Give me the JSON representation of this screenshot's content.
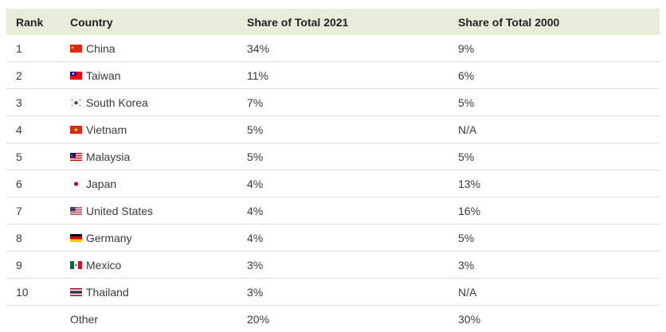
{
  "table": {
    "headers": {
      "rank": "Rank",
      "country": "Country",
      "share_2021": "Share of Total 2021",
      "share_2000": "Share of Total 2000"
    },
    "rows": [
      {
        "rank": "1",
        "country": "China",
        "flag": "china-flag-icon",
        "share_2021": "34%",
        "share_2000": "9%"
      },
      {
        "rank": "2",
        "country": "Taiwan",
        "flag": "taiwan-flag-icon",
        "share_2021": "11%",
        "share_2000": "6%"
      },
      {
        "rank": "3",
        "country": "South Korea",
        "flag": "south-korea-flag-icon",
        "share_2021": "7%",
        "share_2000": "5%"
      },
      {
        "rank": "4",
        "country": "Vietnam",
        "flag": "vietnam-flag-icon",
        "share_2021": "5%",
        "share_2000": "N/A"
      },
      {
        "rank": "5",
        "country": "Malaysia",
        "flag": "malaysia-flag-icon",
        "share_2021": "5%",
        "share_2000": "5%"
      },
      {
        "rank": "6",
        "country": "Japan",
        "flag": "japan-flag-icon",
        "share_2021": "4%",
        "share_2000": "13%"
      },
      {
        "rank": "7",
        "country": "United States",
        "flag": "united-states-flag-icon",
        "share_2021": "4%",
        "share_2000": "16%"
      },
      {
        "rank": "8",
        "country": "Germany",
        "flag": "germany-flag-icon",
        "share_2021": "4%",
        "share_2000": "5%"
      },
      {
        "rank": "9",
        "country": "Mexico",
        "flag": "mexico-flag-icon",
        "share_2021": "3%",
        "share_2000": "3%"
      },
      {
        "rank": "10",
        "country": "Thailand",
        "flag": "thailand-flag-icon",
        "share_2021": "3%",
        "share_2000": "N/A"
      },
      {
        "rank": "",
        "country": "Other",
        "flag": "",
        "share_2021": "20%",
        "share_2000": "30%"
      }
    ]
  },
  "colors": {
    "header_background": "#e6eedb",
    "row_divider": "#dedede"
  }
}
